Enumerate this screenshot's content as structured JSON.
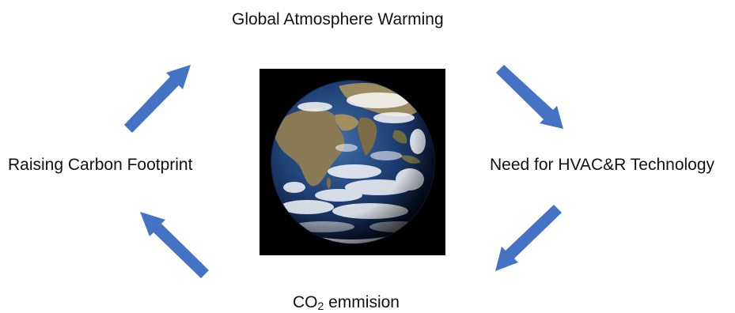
{
  "diagram": {
    "labels": {
      "top": "Global Atmosphere Warming",
      "right": "Need for HVAC&R Technology",
      "bottom_main": "CO",
      "bottom_subscript": "2",
      "bottom_rest": " emmision",
      "left": "Raising Carbon Footprint"
    },
    "center_image": "earth-globe-photo",
    "arrow_color": "#4472C4",
    "arrows": [
      {
        "from": "left",
        "to": "top",
        "direction": "up-right"
      },
      {
        "from": "top",
        "to": "right",
        "direction": "down-right"
      },
      {
        "from": "right",
        "to": "bottom",
        "direction": "down-left"
      },
      {
        "from": "bottom",
        "to": "left",
        "direction": "up-left"
      }
    ]
  }
}
